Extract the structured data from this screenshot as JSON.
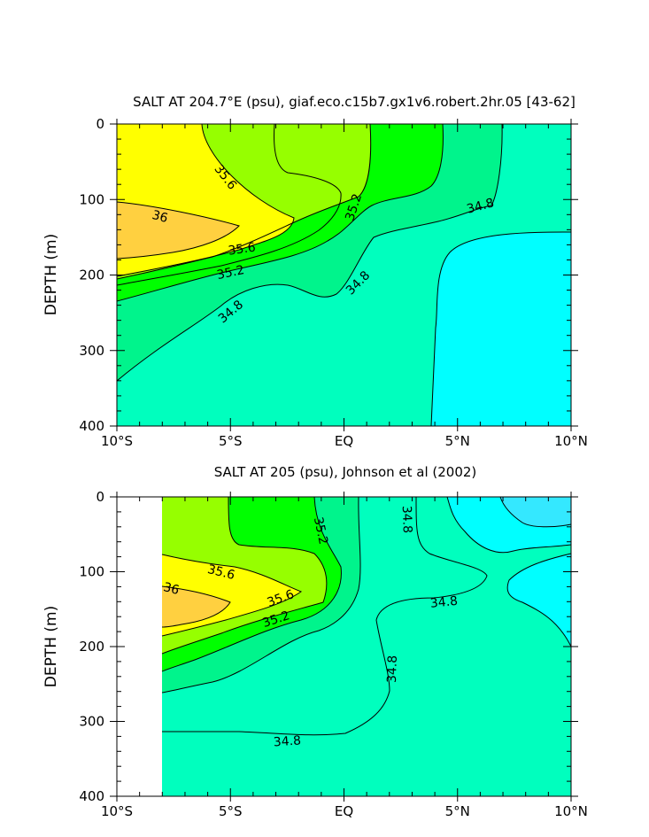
{
  "chart_data": [
    {
      "type": "contour",
      "title": "SALT AT 204.7°E (psu), giaf.eco.c15b7.gx1v6.robert.2hr.05 [43-62]",
      "ylabel": "DEPTH (m)",
      "xlim": [
        -10,
        10
      ],
      "ylim": [
        400,
        0
      ],
      "x_tick_values": [
        -10,
        -5,
        0,
        5,
        10
      ],
      "x_tick_labels": [
        "10°S",
        "5°S",
        "EQ",
        "5°N",
        "10°N"
      ],
      "y_tick_values": [
        0,
        100,
        200,
        300,
        400
      ],
      "y_tick_labels": [
        "0",
        "100",
        "200",
        "300",
        "400"
      ],
      "contour_labels": [
        {
          "text": "35.6",
          "x": -5.2,
          "y": 70,
          "rot": 52
        },
        {
          "text": "35.2",
          "x": 0.4,
          "y": 110,
          "rot": -72
        },
        {
          "text": "34.8",
          "x": 6.0,
          "y": 108,
          "rot": -15
        },
        {
          "text": "36",
          "x": -8.1,
          "y": 122,
          "rot": 15
        },
        {
          "text": "35.6",
          "x": -4.5,
          "y": 165,
          "rot": -8
        },
        {
          "text": "35.2",
          "x": -5.0,
          "y": 196,
          "rot": -12
        },
        {
          "text": "34.8",
          "x": 0.6,
          "y": 210,
          "rot": -45
        },
        {
          "text": "34.8",
          "x": -5.0,
          "y": 248,
          "rot": -40
        }
      ]
    },
    {
      "type": "contour",
      "title": "SALT AT 205 (psu), Johnson et al (2002)",
      "ylabel": "DEPTH (m)",
      "xlim": [
        -10,
        10
      ],
      "ylim": [
        400,
        0
      ],
      "x_tick_values": [
        -10,
        -5,
        0,
        5,
        10
      ],
      "x_tick_labels": [
        "10°S",
        "5°S",
        "EQ",
        "5°N",
        "10°N"
      ],
      "y_tick_values": [
        0,
        100,
        200,
        300,
        400
      ],
      "y_tick_labels": [
        "0",
        "100",
        "200",
        "300",
        "400"
      ],
      "contour_labels": [
        {
          "text": "35.2",
          "x": -1.0,
          "y": 45,
          "rot": 78
        },
        {
          "text": "34.8",
          "x": 2.8,
          "y": 30,
          "rot": 88
        },
        {
          "text": "35.6",
          "x": -5.4,
          "y": 100,
          "rot": 14
        },
        {
          "text": "36",
          "x": -7.6,
          "y": 122,
          "rot": 14
        },
        {
          "text": "35.6",
          "x": -2.8,
          "y": 135,
          "rot": -20
        },
        {
          "text": "35.2",
          "x": -3.0,
          "y": 163,
          "rot": -18
        },
        {
          "text": "34.8",
          "x": 4.4,
          "y": 140,
          "rot": -6
        },
        {
          "text": "34.8",
          "x": 2.1,
          "y": 230,
          "rot": -88
        },
        {
          "text": "34.8",
          "x": -2.5,
          "y": 326,
          "rot": -4
        }
      ]
    }
  ]
}
